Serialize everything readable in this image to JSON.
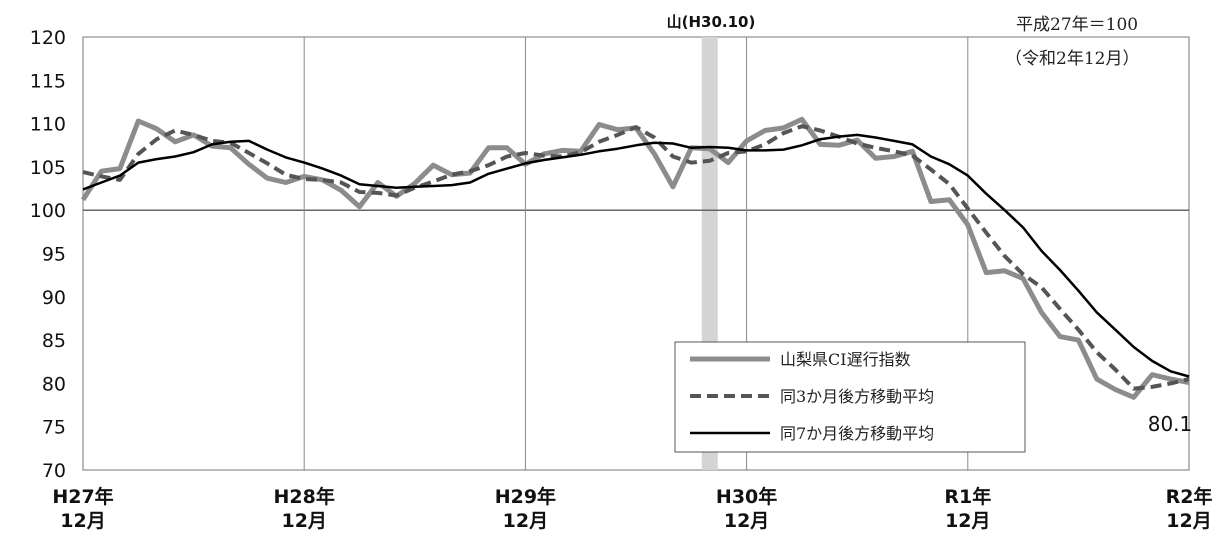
{
  "chart_data": {
    "type": "line",
    "base_note": "平成27年＝100",
    "period_note": "（令和2年12月）",
    "peak_label": "山(H30.10)",
    "ylim": [
      70,
      120
    ],
    "yticks": [
      120,
      115,
      110,
      105,
      100,
      95,
      90,
      85,
      80,
      75,
      70
    ],
    "x_tick_labels": [
      {
        "line1": "H27年",
        "line2": "12月"
      },
      {
        "line1": "H28年",
        "line2": "12月"
      },
      {
        "line1": "H29年",
        "line2": "12月"
      },
      {
        "line1": "H30年",
        "line2": "12月"
      },
      {
        "line1": "R1年",
        "line2": "12月"
      },
      {
        "line1": "R2年",
        "line2": "12月"
      }
    ],
    "last_value_label": "80.1",
    "shaded_period_index": 34,
    "series": [
      {
        "name": "山梨県CI遅行指数",
        "color": "#8c8c8c",
        "style": "solid-thick",
        "values": [
          101.2,
          104.5,
          104.8,
          110.3,
          109.4,
          107.9,
          108.7,
          107.4,
          107.2,
          105.3,
          103.7,
          103.2,
          103.9,
          103.5,
          102.3,
          100.4,
          103.2,
          101.6,
          103.1,
          105.2,
          104.1,
          104.3,
          107.2,
          107.2,
          105.3,
          106.5,
          106.9,
          106.8,
          109.9,
          109.3,
          109.5,
          106.5,
          102.7,
          107.2,
          107.1,
          105.5,
          108.0,
          109.2,
          109.5,
          110.5,
          107.6,
          107.5,
          108.1,
          106.0,
          106.2,
          106.8,
          101.0,
          101.2,
          98.3,
          92.8,
          93.0,
          92.1,
          88.2,
          85.4,
          85.0,
          80.5,
          79.3,
          78.4,
          81.0,
          80.5,
          80.1
        ]
      },
      {
        "name": "同3か月後方移動平均",
        "color": "#555555",
        "style": "dashed",
        "values": [
          104.4,
          103.9,
          103.5,
          106.5,
          108.2,
          109.2,
          108.7,
          108.0,
          107.8,
          106.6,
          105.4,
          104.1,
          103.6,
          103.5,
          103.2,
          102.1,
          102.0,
          101.7,
          102.6,
          103.3,
          104.1,
          104.5,
          105.2,
          106.2,
          106.6,
          106.3,
          106.2,
          106.7,
          107.9,
          108.7,
          109.6,
          108.4,
          106.2,
          105.5,
          105.7,
          106.6,
          106.8,
          107.6,
          108.9,
          109.7,
          109.2,
          108.5,
          107.7,
          107.2,
          106.8,
          106.3,
          104.7,
          103.0,
          100.2,
          97.4,
          94.7,
          92.6,
          91.1,
          88.6,
          86.2,
          83.6,
          81.6,
          79.4,
          79.6,
          80.0,
          80.5
        ]
      },
      {
        "name": "同7か月後方移動平均",
        "color": "#000000",
        "style": "solid-thin",
        "values": [
          102.4,
          103.2,
          104.0,
          105.5,
          105.9,
          106.2,
          106.7,
          107.6,
          107.9,
          108.0,
          107.0,
          106.1,
          105.5,
          104.8,
          104.0,
          103.0,
          102.8,
          102.6,
          102.7,
          102.8,
          102.9,
          103.2,
          104.2,
          104.8,
          105.4,
          105.8,
          106.1,
          106.4,
          106.8,
          107.1,
          107.5,
          107.8,
          107.7,
          107.2,
          107.3,
          107.2,
          106.9,
          106.9,
          107.0,
          107.5,
          108.2,
          108.5,
          108.7,
          108.4,
          108.0,
          107.6,
          106.2,
          105.3,
          104.0,
          101.9,
          100.0,
          98.0,
          95.3,
          93.1,
          90.7,
          88.2,
          86.2,
          84.2,
          82.6,
          81.4,
          80.8
        ]
      }
    ]
  }
}
